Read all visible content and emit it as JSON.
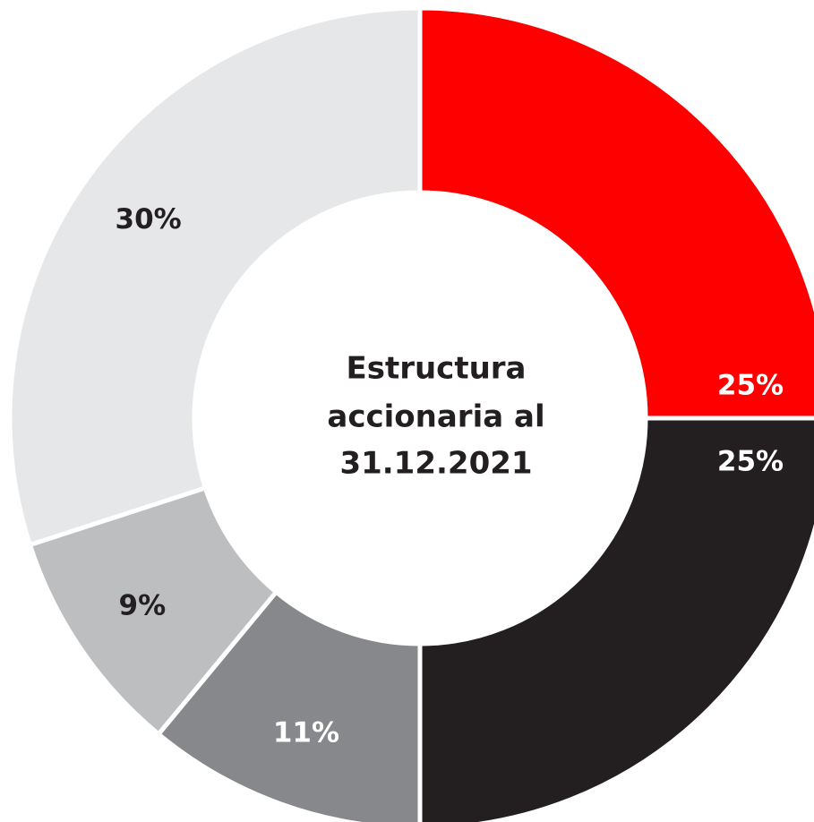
{
  "chart_data": {
    "type": "pie",
    "title_lines": [
      "Estructura",
      "accionaria al",
      "31.12.2021"
    ],
    "slices": [
      {
        "value": 25,
        "label": "25%",
        "color": "#ff0000",
        "label_color": "#ffffff"
      },
      {
        "value": 25,
        "label": "25%",
        "color": "#231f20",
        "label_color": "#ffffff"
      },
      {
        "value": 11,
        "label": "11%",
        "color": "#87888b",
        "label_color": "#ffffff"
      },
      {
        "value": 9,
        "label": "9%",
        "color": "#bdbec0",
        "label_color": "#231f20"
      },
      {
        "value": 30,
        "label": "30%",
        "color": "#e6e7e8",
        "label_color": "#231f20"
      }
    ]
  }
}
